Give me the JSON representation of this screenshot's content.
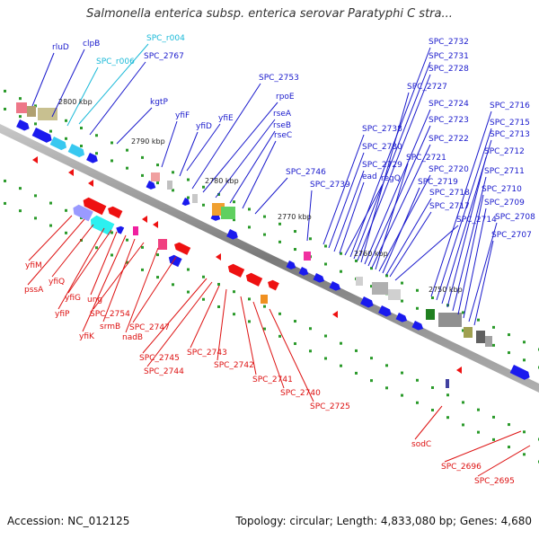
{
  "title": "Salmonella enterica subsp. enterica serovar Paratyphi C stra...",
  "footer": {
    "accession": "Accession: NC_012125",
    "topology": "Topology: circular; Length: 4,833,080 bp; Genes: 4,680"
  },
  "colors": {
    "forward_label": "#1a1acc",
    "rna_label": "#19b9d8",
    "reverse_label": "#dd1111",
    "backbone": "#8a8a8a",
    "gene_blue": "#1a1aee",
    "gene_red": "#ee1111",
    "tick_green": "#2a9a2a"
  },
  "scale_labels": [
    "2800 kbp",
    "2790 kbp",
    "2780 kbp",
    "2770 kbp",
    "2760 kbp",
    "2750 kbp"
  ],
  "forward_labels": [
    "rluD",
    "clpB",
    "SPC_r004",
    "SPC_r006",
    "SPC_2767",
    "kgtP",
    "yfiF",
    "yfiD",
    "yfiE",
    "SPC_2753",
    "rpoE",
    "rseA",
    "rseB",
    "rseC",
    "SPC_2746",
    "SPC_2739",
    "SPC_2738",
    "SPC_2730",
    "SPC_2729",
    "ead",
    "regQ",
    "SPC_2732",
    "SPC_2731",
    "SPC_2728",
    "SPC_2727",
    "SPC_2724",
    "SPC_2723",
    "SPC_2722",
    "SPC_2721",
    "SPC_2720",
    "SPC_2719",
    "SPC_2718",
    "SPC_2717",
    "SPC_2714",
    "SPC_2716",
    "SPC_2715",
    "SPC_2713",
    "SPC_2712",
    "SPC_2711",
    "SPC_2710",
    "SPC_2709",
    "SPC_2708",
    "SPC_2707"
  ],
  "reverse_labels": [
    "yfiM",
    "pssA",
    "yfiQ",
    "yfiP",
    "yfiG",
    "ung",
    "yfiK",
    "srmB",
    "SPC_2754",
    "nadB",
    "SPC_2747",
    "SPC_2745",
    "SPC_2744",
    "SPC_2743",
    "SPC_2742",
    "SPC_2741",
    "SPC_2740",
    "SPC_2725",
    "sodC",
    "SPC_2696",
    "SPC_2695"
  ]
}
